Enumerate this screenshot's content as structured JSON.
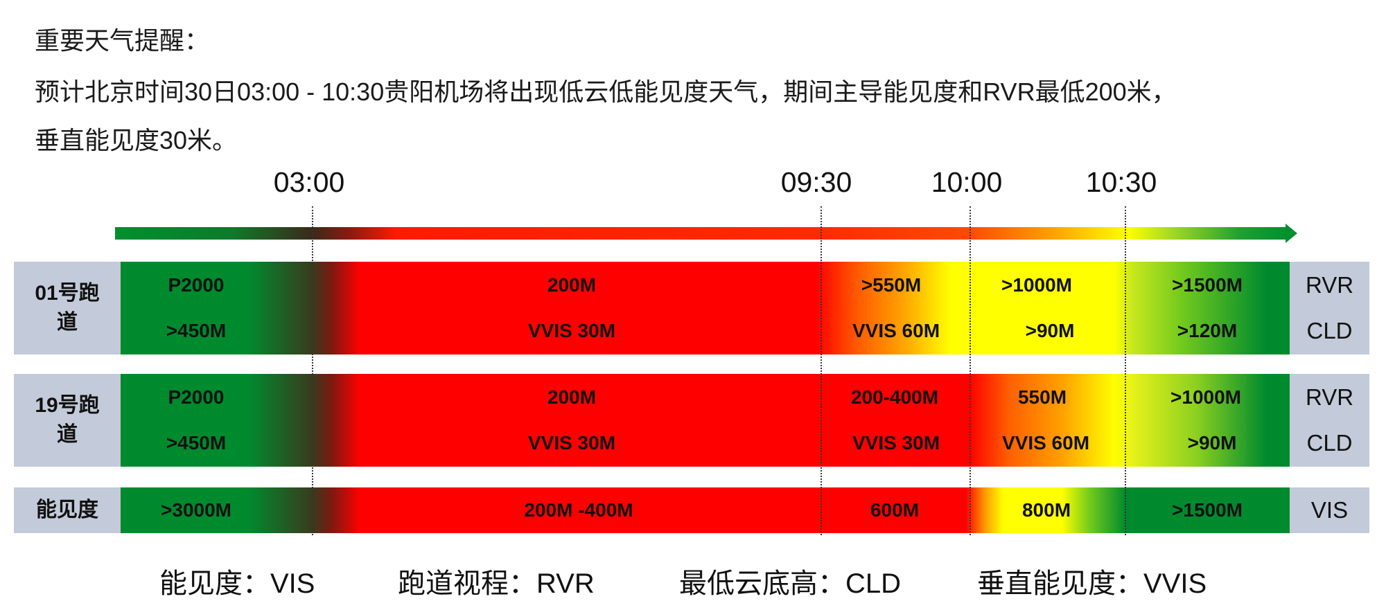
{
  "notice": {
    "title": "重要天气提醒：",
    "line1": "预计北京时间30日03:00 - 10:30贵阳机场将出现低云低能见度天气，期间主导能见度和RVR最低200米，",
    "line2": "垂直能见度30米。"
  },
  "timeline": {
    "times": [
      "03:00",
      "09:30",
      "10:00",
      "10:30"
    ],
    "colors": {
      "good": "#008a2e",
      "bad": "#ff0000",
      "moderate": "#ffff00",
      "label_bg": "#c3cad9"
    }
  },
  "rows": [
    {
      "label": "01号跑道",
      "right_top": "RVR",
      "right_bottom": "CLD",
      "top": [
        "P2000",
        "200M",
        ">550M",
        ">1000M",
        ">1500M"
      ],
      "bottom": [
        ">450M",
        "VVIS 30M",
        "VVIS 60M",
        ">90M",
        ">120M"
      ]
    },
    {
      "label": "19号跑道",
      "right_top": "RVR",
      "right_bottom": "CLD",
      "top": [
        "P2000",
        "200M",
        "200-400M",
        "550M",
        ">1000M"
      ],
      "bottom": [
        ">450M",
        "VVIS 30M",
        "VVIS 30M",
        "VVIS 60M",
        ">90M"
      ]
    },
    {
      "label": "能见度",
      "right": "VIS",
      "values": [
        ">3000M",
        "200M -400M",
        "600M",
        "800M",
        ">1500M"
      ]
    }
  ],
  "legend": [
    "能见度：VIS",
    "跑道视程：RVR",
    "最低云底高：CLD",
    "垂直能见度：VVIS"
  ]
}
